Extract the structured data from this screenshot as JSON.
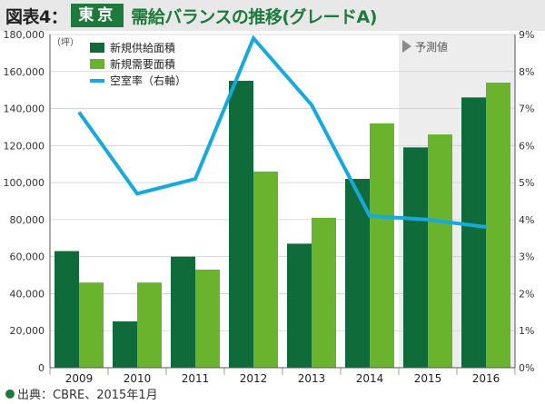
{
  "header": {
    "figure_label": "図表4：",
    "city": "東京",
    "title": "需給バランスの推移(グレードA)"
  },
  "chart_data": {
    "type": "bar",
    "categories": [
      "2009",
      "2010",
      "2011",
      "2012",
      "2013",
      "2014",
      "2015",
      "2016"
    ],
    "series": [
      {
        "name": "新規供給面積",
        "type": "bar",
        "axis": "left",
        "color": "#0f6b3a",
        "values": [
          63000,
          25000,
          60000,
          155000,
          67000,
          102000,
          119000,
          146000
        ]
      },
      {
        "name": "新規需要面積",
        "type": "bar",
        "axis": "left",
        "color": "#6ab42d",
        "values": [
          46000,
          46000,
          53000,
          106000,
          81000,
          132000,
          126000,
          154000
        ]
      },
      {
        "name": "空室率（右軸）",
        "type": "line",
        "axis": "right",
        "color": "#15a9dd",
        "values": [
          6.9,
          4.7,
          5.1,
          8.9,
          7.1,
          4.1,
          4.0,
          3.8
        ]
      }
    ],
    "ylim_left": [
      0,
      180000
    ],
    "yticks_left": [
      "0",
      "20,000",
      "40,000",
      "60,000",
      "80,000",
      "100,000",
      "120,000",
      "140,000",
      "160,000",
      "180,000"
    ],
    "ylim_right": [
      0,
      9
    ],
    "yticks_right": [
      "0%",
      "1%",
      "2%",
      "3%",
      "4%",
      "5%",
      "6%",
      "7%",
      "8%",
      "9%"
    ],
    "left_unit": "（坪）",
    "forecast_label": "予測値",
    "forecast_categories": [
      "2015",
      "2016"
    ],
    "legend_position": "top-left"
  },
  "footer": {
    "source": "出典：CBRE、2015年1月"
  }
}
